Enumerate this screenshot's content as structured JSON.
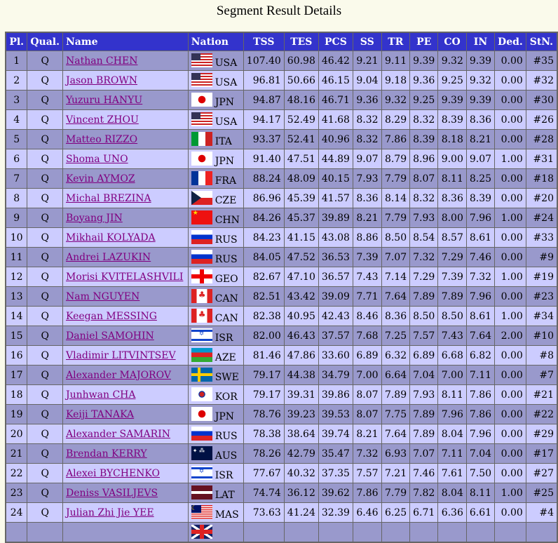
{
  "title": "Segment Result Details",
  "colors": {
    "header": "#3333cc",
    "row_odd": "#9999cc",
    "row_even": "#ccccff",
    "link": "#800080"
  },
  "columns": [
    "Pl.",
    "Qual.",
    "Name",
    "Nation",
    "TSS",
    "TES",
    "PCS",
    "SS",
    "TR",
    "PE",
    "CO",
    "IN",
    "Ded.",
    "StN."
  ],
  "rows": [
    [
      "1",
      "Q",
      "Nathan CHEN",
      "USA",
      "107.40",
      "60.98",
      "46.42",
      "9.21",
      "9.11",
      "9.39",
      "9.32",
      "9.39",
      "0.00",
      "#35"
    ],
    [
      "2",
      "Q",
      "Jason BROWN",
      "USA",
      "96.81",
      "50.66",
      "46.15",
      "9.04",
      "9.18",
      "9.36",
      "9.25",
      "9.32",
      "0.00",
      "#32"
    ],
    [
      "3",
      "Q",
      "Yuzuru HANYU",
      "JPN",
      "94.87",
      "48.16",
      "46.71",
      "9.36",
      "9.32",
      "9.25",
      "9.39",
      "9.39",
      "0.00",
      "#30"
    ],
    [
      "4",
      "Q",
      "Vincent ZHOU",
      "USA",
      "94.17",
      "52.49",
      "41.68",
      "8.32",
      "8.29",
      "8.32",
      "8.39",
      "8.36",
      "0.00",
      "#26"
    ],
    [
      "5",
      "Q",
      "Matteo RIZZO",
      "ITA",
      "93.37",
      "52.41",
      "40.96",
      "8.32",
      "7.86",
      "8.39",
      "8.18",
      "8.21",
      "0.00",
      "#28"
    ],
    [
      "6",
      "Q",
      "Shoma UNO",
      "JPN",
      "91.40",
      "47.51",
      "44.89",
      "9.07",
      "8.79",
      "8.96",
      "9.00",
      "9.07",
      "1.00",
      "#31"
    ],
    [
      "7",
      "Q",
      "Kevin AYMOZ",
      "FRA",
      "88.24",
      "48.09",
      "40.15",
      "7.93",
      "7.79",
      "8.07",
      "8.11",
      "8.25",
      "0.00",
      "#18"
    ],
    [
      "8",
      "Q",
      "Michal BREZINA",
      "CZE",
      "86.96",
      "45.39",
      "41.57",
      "8.36",
      "8.14",
      "8.32",
      "8.36",
      "8.39",
      "0.00",
      "#20"
    ],
    [
      "9",
      "Q",
      "Boyang JIN",
      "CHN",
      "84.26",
      "45.37",
      "39.89",
      "8.21",
      "7.79",
      "7.93",
      "8.00",
      "7.96",
      "1.00",
      "#24"
    ],
    [
      "10",
      "Q",
      "Mikhail KOLYADA",
      "RUS",
      "84.23",
      "41.15",
      "43.08",
      "8.86",
      "8.50",
      "8.54",
      "8.57",
      "8.61",
      "0.00",
      "#33"
    ],
    [
      "11",
      "Q",
      "Andrei LAZUKIN",
      "RUS",
      "84.05",
      "47.52",
      "36.53",
      "7.39",
      "7.07",
      "7.32",
      "7.29",
      "7.46",
      "0.00",
      "#9"
    ],
    [
      "12",
      "Q",
      "Morisi KVITELASHVILI",
      "GEO",
      "82.67",
      "47.10",
      "36.57",
      "7.43",
      "7.14",
      "7.29",
      "7.39",
      "7.32",
      "1.00",
      "#19"
    ],
    [
      "13",
      "Q",
      "Nam NGUYEN",
      "CAN",
      "82.51",
      "43.42",
      "39.09",
      "7.71",
      "7.64",
      "7.89",
      "7.89",
      "7.96",
      "0.00",
      "#23"
    ],
    [
      "14",
      "Q",
      "Keegan MESSING",
      "CAN",
      "82.38",
      "40.95",
      "42.43",
      "8.46",
      "8.36",
      "8.50",
      "8.50",
      "8.61",
      "1.00",
      "#34"
    ],
    [
      "15",
      "Q",
      "Daniel SAMOHIN",
      "ISR",
      "82.00",
      "46.43",
      "37.57",
      "7.68",
      "7.25",
      "7.57",
      "7.43",
      "7.64",
      "2.00",
      "#10"
    ],
    [
      "16",
      "Q",
      "Vladimir LITVINTSEV",
      "AZE",
      "81.46",
      "47.86",
      "33.60",
      "6.89",
      "6.32",
      "6.89",
      "6.68",
      "6.82",
      "0.00",
      "#8"
    ],
    [
      "17",
      "Q",
      "Alexander MAJOROV",
      "SWE",
      "79.17",
      "44.38",
      "34.79",
      "7.00",
      "6.64",
      "7.04",
      "7.00",
      "7.11",
      "0.00",
      "#7"
    ],
    [
      "18",
      "Q",
      "Junhwan CHA",
      "KOR",
      "79.17",
      "39.31",
      "39.86",
      "8.07",
      "7.89",
      "7.93",
      "8.11",
      "7.86",
      "0.00",
      "#21"
    ],
    [
      "19",
      "Q",
      "Keiji TANAKA",
      "JPN",
      "78.76",
      "39.23",
      "39.53",
      "8.07",
      "7.75",
      "7.89",
      "7.96",
      "7.86",
      "0.00",
      "#22"
    ],
    [
      "20",
      "Q",
      "Alexander SAMARIN",
      "RUS",
      "78.38",
      "38.64",
      "39.74",
      "8.21",
      "7.64",
      "7.89",
      "8.04",
      "7.96",
      "0.00",
      "#29"
    ],
    [
      "21",
      "Q",
      "Brendan KERRY",
      "AUS",
      "78.26",
      "42.79",
      "35.47",
      "7.32",
      "6.93",
      "7.07",
      "7.11",
      "7.04",
      "0.00",
      "#17"
    ],
    [
      "22",
      "Q",
      "Alexei BYCHENKO",
      "ISR",
      "77.67",
      "40.32",
      "37.35",
      "7.57",
      "7.21",
      "7.46",
      "7.61",
      "7.50",
      "0.00",
      "#27"
    ],
    [
      "23",
      "Q",
      "Deniss VASILJEVS",
      "LAT",
      "74.74",
      "36.12",
      "39.62",
      "7.86",
      "7.79",
      "7.82",
      "8.04",
      "8.11",
      "1.00",
      "#25"
    ],
    [
      "24",
      "Q",
      "Julian Zhi Jie YEE",
      "MAS",
      "73.63",
      "41.24",
      "32.39",
      "6.46",
      "6.25",
      "6.71",
      "6.36",
      "6.61",
      "0.00",
      "#4"
    ]
  ],
  "partial_row_flag": "GBR"
}
